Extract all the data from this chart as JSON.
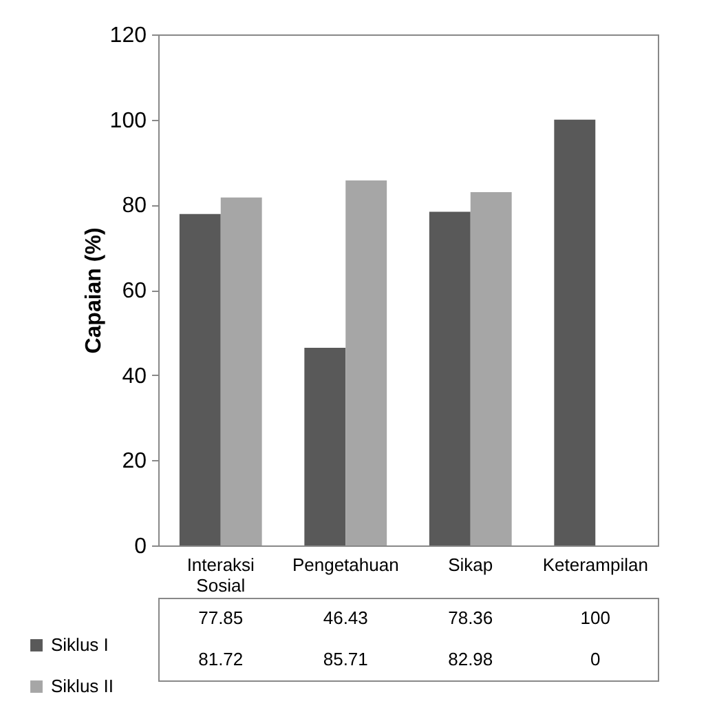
{
  "chart_data": {
    "type": "bar",
    "ylabel": "Capaian (%)",
    "categories": [
      "Interaksi Sosial",
      "Pengetahuan",
      "Sikap",
      "Keterampilan"
    ],
    "series": [
      {
        "name": "Siklus I",
        "color": "#595959",
        "values": [
          77.85,
          46.43,
          78.36,
          100
        ]
      },
      {
        "name": "Siklus II",
        "color": "#a6a6a6",
        "values": [
          81.72,
          85.71,
          82.98,
          0
        ]
      }
    ],
    "ylim": [
      0,
      120
    ],
    "yticks": [
      0,
      20,
      40,
      60,
      80,
      100,
      120
    ],
    "grid": false,
    "legend": "bottom left",
    "data_labels": true
  }
}
